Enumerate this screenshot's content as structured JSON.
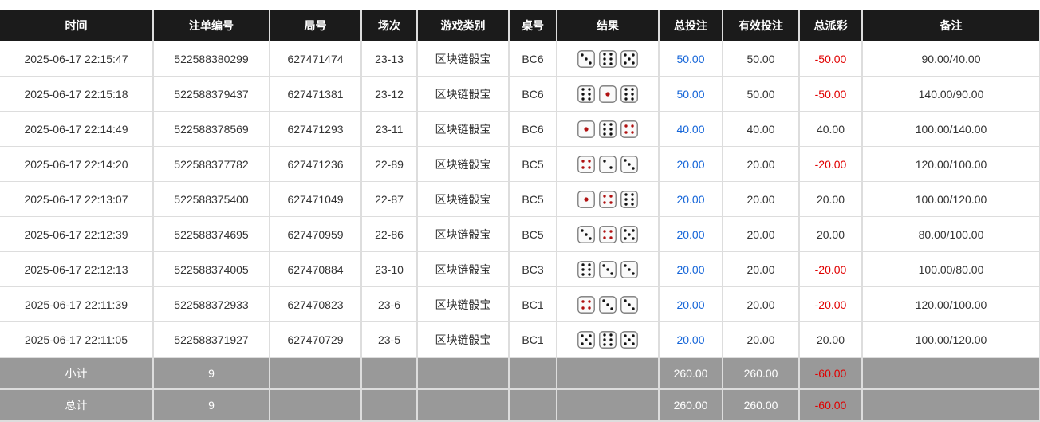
{
  "headers": [
    "时间",
    "注单编号",
    "局号",
    "场次",
    "游戏类别",
    "桌号",
    "结果",
    "总投注",
    "有效投注",
    "总派彩",
    "备注"
  ],
  "rows": [
    {
      "time": "2025-06-17 22:15:47",
      "bet_id": "522588380299",
      "round": "627471474",
      "session": "23-13",
      "game": "区块链骰宝",
      "table": "BC6",
      "dice": [
        3,
        6,
        5
      ],
      "total_bet": "50.00",
      "valid_bet": "50.00",
      "payout": "-50.00",
      "note": "90.00/40.00"
    },
    {
      "time": "2025-06-17 22:15:18",
      "bet_id": "522588379437",
      "round": "627471381",
      "session": "23-12",
      "game": "区块链骰宝",
      "table": "BC6",
      "dice": [
        6,
        1,
        6
      ],
      "total_bet": "50.00",
      "valid_bet": "50.00",
      "payout": "-50.00",
      "note": "140.00/90.00"
    },
    {
      "time": "2025-06-17 22:14:49",
      "bet_id": "522588378569",
      "round": "627471293",
      "session": "23-11",
      "game": "区块链骰宝",
      "table": "BC6",
      "dice": [
        1,
        6,
        4
      ],
      "total_bet": "40.00",
      "valid_bet": "40.00",
      "payout": "40.00",
      "note": "100.00/140.00"
    },
    {
      "time": "2025-06-17 22:14:20",
      "bet_id": "522588377782",
      "round": "627471236",
      "session": "22-89",
      "game": "区块链骰宝",
      "table": "BC5",
      "dice": [
        4,
        2,
        3
      ],
      "total_bet": "20.00",
      "valid_bet": "20.00",
      "payout": "-20.00",
      "note": "120.00/100.00"
    },
    {
      "time": "2025-06-17 22:13:07",
      "bet_id": "522588375400",
      "round": "627471049",
      "session": "22-87",
      "game": "区块链骰宝",
      "table": "BC5",
      "dice": [
        1,
        4,
        6
      ],
      "total_bet": "20.00",
      "valid_bet": "20.00",
      "payout": "20.00",
      "note": "100.00/120.00"
    },
    {
      "time": "2025-06-17 22:12:39",
      "bet_id": "522588374695",
      "round": "627470959",
      "session": "22-86",
      "game": "区块链骰宝",
      "table": "BC5",
      "dice": [
        3,
        4,
        5
      ],
      "total_bet": "20.00",
      "valid_bet": "20.00",
      "payout": "20.00",
      "note": "80.00/100.00"
    },
    {
      "time": "2025-06-17 22:12:13",
      "bet_id": "522588374005",
      "round": "627470884",
      "session": "23-10",
      "game": "区块链骰宝",
      "table": "BC3",
      "dice": [
        6,
        3,
        3
      ],
      "total_bet": "20.00",
      "valid_bet": "20.00",
      "payout": "-20.00",
      "note": "100.00/80.00"
    },
    {
      "time": "2025-06-17 22:11:39",
      "bet_id": "522588372933",
      "round": "627470823",
      "session": "23-6",
      "game": "区块链骰宝",
      "table": "BC1",
      "dice": [
        4,
        3,
        3
      ],
      "total_bet": "20.00",
      "valid_bet": "20.00",
      "payout": "-20.00",
      "note": "120.00/100.00"
    },
    {
      "time": "2025-06-17 22:11:05",
      "bet_id": "522588371927",
      "round": "627470729",
      "session": "23-5",
      "game": "区块链骰宝",
      "table": "BC1",
      "dice": [
        5,
        6,
        5
      ],
      "total_bet": "20.00",
      "valid_bet": "20.00",
      "payout": "20.00",
      "note": "100.00/120.00"
    }
  ],
  "subtotal": {
    "label": "小计",
    "count": "9",
    "total_bet": "260.00",
    "valid_bet": "260.00",
    "payout": "-60.00"
  },
  "grandtotal": {
    "label": "总计",
    "count": "9",
    "total_bet": "260.00",
    "valid_bet": "260.00",
    "payout": "-60.00"
  },
  "colors": {
    "header_bg": "#1b1b1b",
    "footer_bg": "#999999",
    "bet_blue": "#1565d8",
    "loss_red": "#e00000",
    "pip_red": "#b01010"
  }
}
